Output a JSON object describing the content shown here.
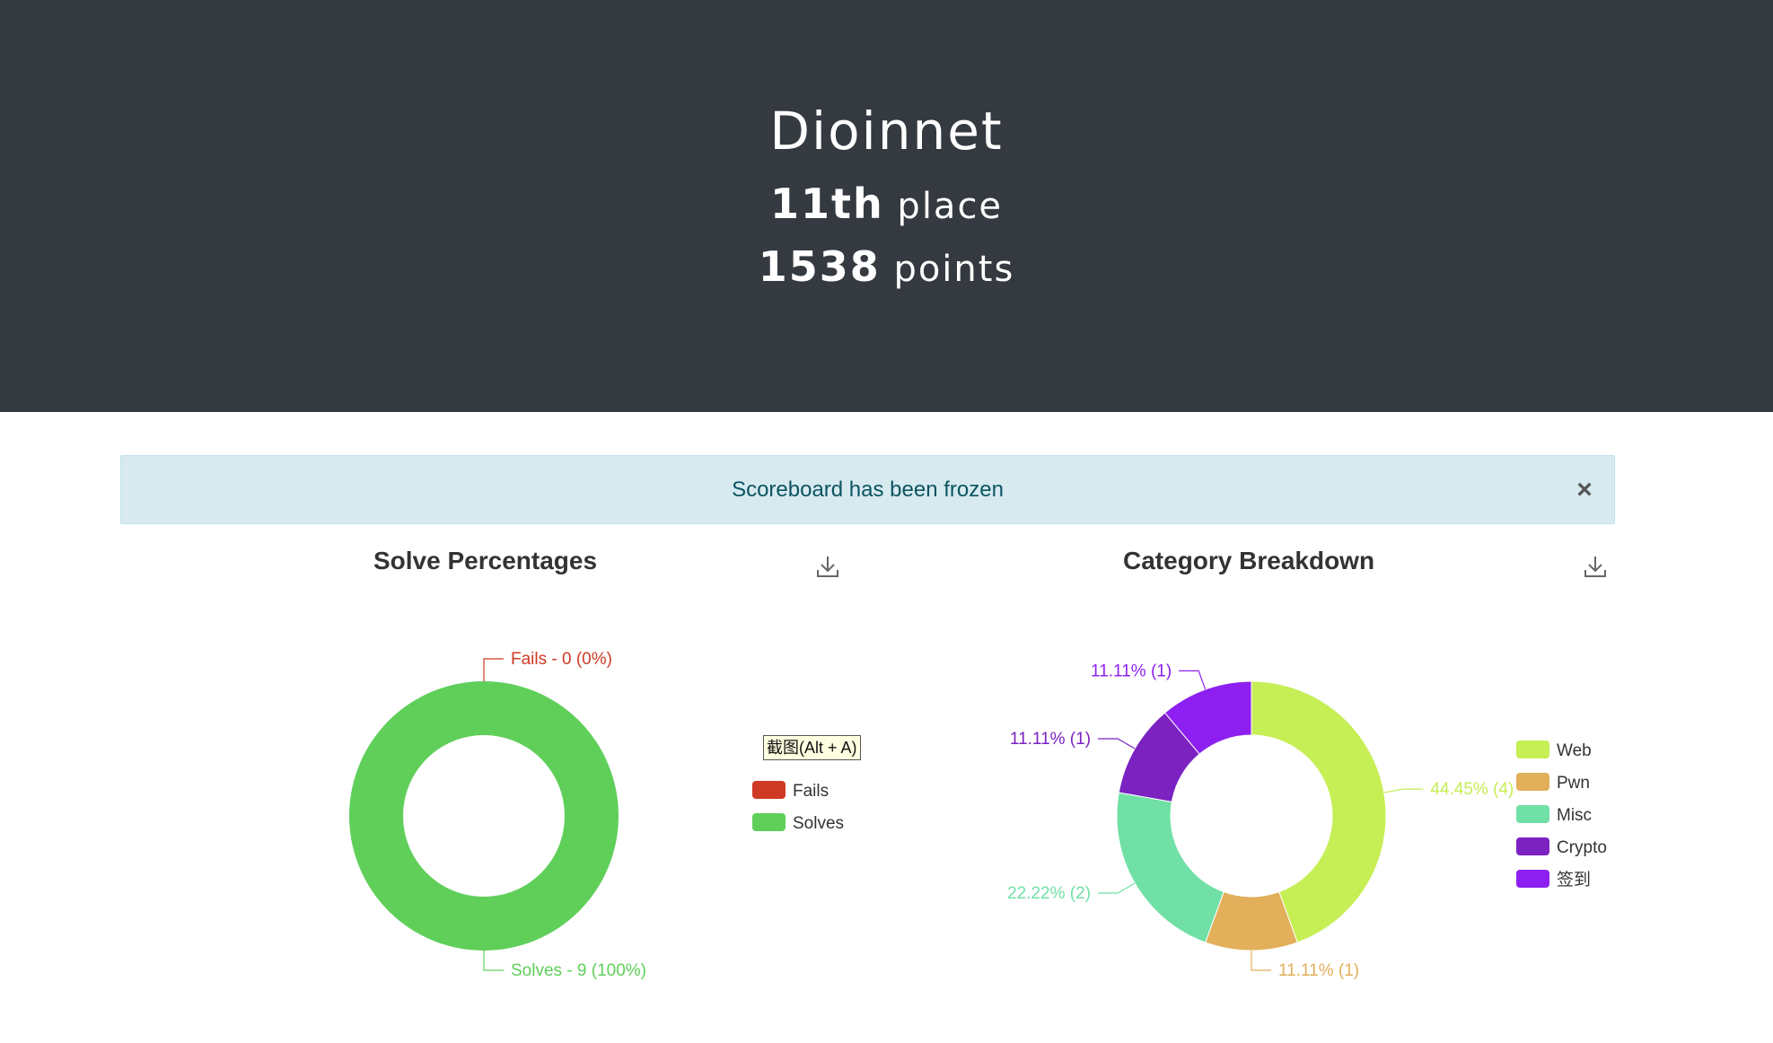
{
  "team": {
    "name": "Dioinnet",
    "place_number": "11th",
    "place_label": "place",
    "points_number": "1538",
    "points_label": "points"
  },
  "alert": {
    "message": "Scoreboard has been frozen",
    "close_label": "×"
  },
  "tooltip": {
    "text": "截图(Alt + A)"
  },
  "chart_data": [
    {
      "type": "pie",
      "title": "Solve Percentages",
      "labels": [
        "Fails",
        "Solves"
      ],
      "values": [
        0,
        9
      ],
      "colors": [
        "#cf3a24",
        "#5fcf5a"
      ],
      "data_labels": [
        "Fails - 0 (0%)",
        "Solves - 9 (100%)"
      ],
      "legend": "right",
      "donut": true
    },
    {
      "type": "pie",
      "title": "Category Breakdown",
      "labels": [
        "Web",
        "Pwn",
        "Misc",
        "Crypto",
        "签到"
      ],
      "values": [
        4,
        1,
        2,
        1,
        1
      ],
      "colors": [
        "#c6ee55",
        "#e2af5a",
        "#71e0a6",
        "#7b22c1",
        "#8d20f0"
      ],
      "data_labels": [
        "44.45% (4)",
        "11.11% (1)",
        "22.22% (2)",
        "11.11% (1)",
        "11.11% (1)"
      ],
      "legend": "right",
      "donut": true
    }
  ]
}
